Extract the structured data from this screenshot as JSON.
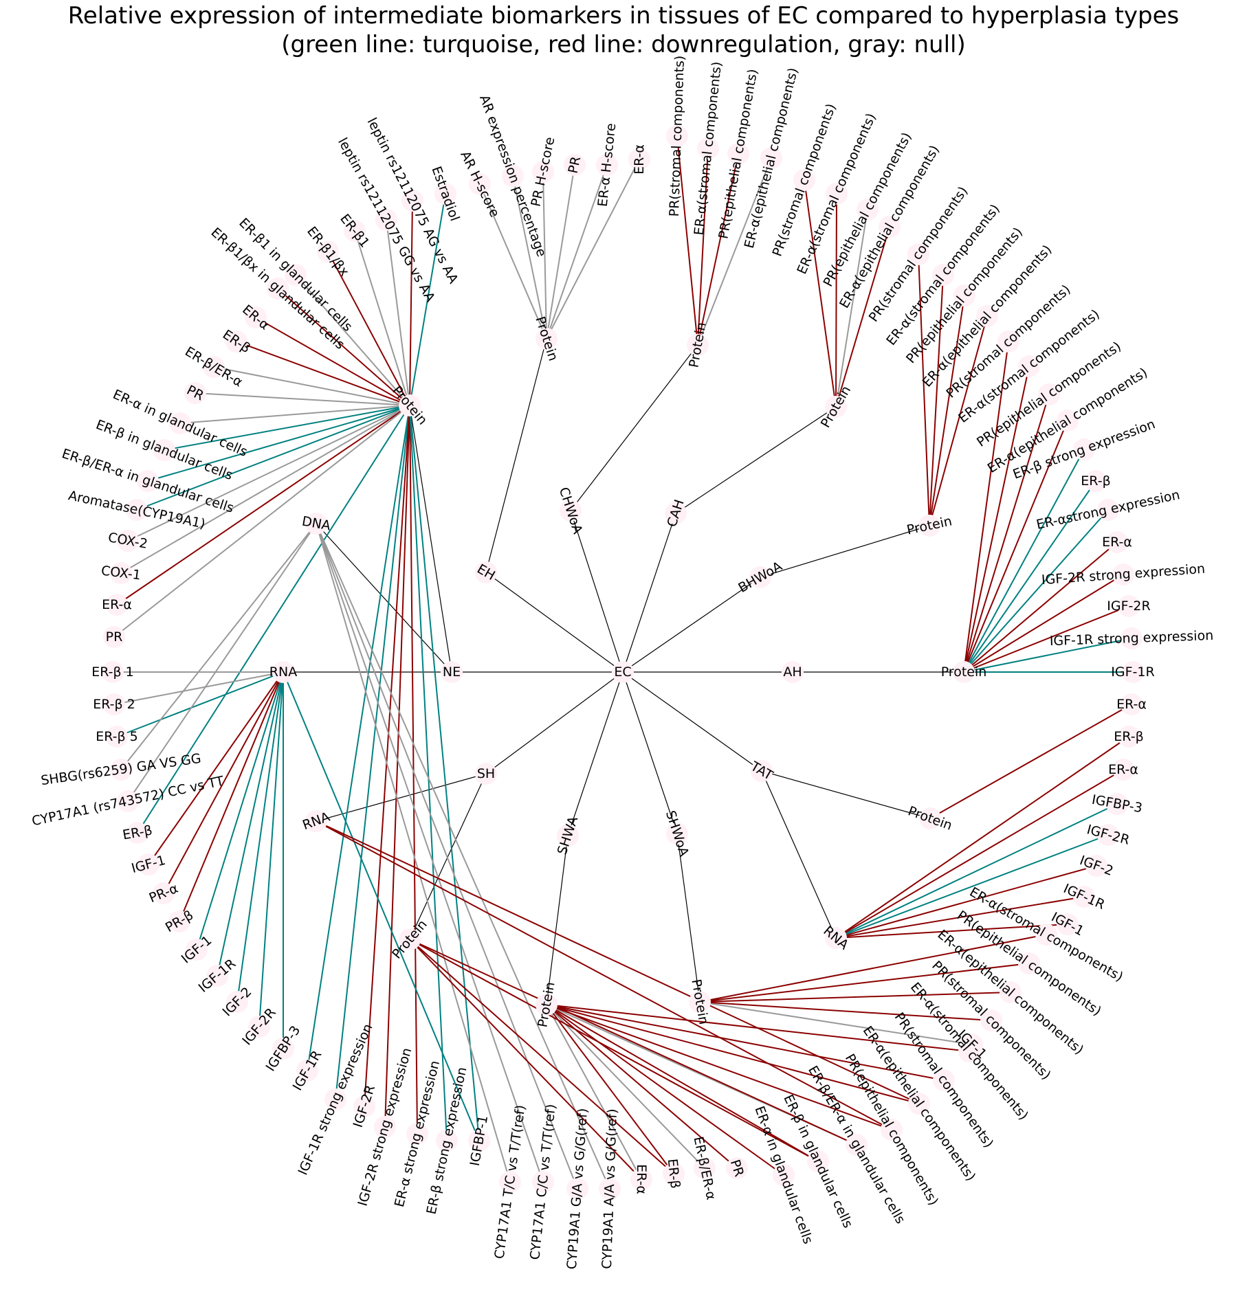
{
  "title": {
    "line1": "Relative expression of intermediate biomarkers in tissues of EC compared to hyperplasia types",
    "line2": "(green line: turquoise, red line: downregulation, gray: null)"
  },
  "colors": {
    "green": "#008080",
    "red": "#8b0000",
    "gray": "#999999",
    "black": "#000000",
    "node_fill": "#fff0f5"
  },
  "nodes": {
    "EC": "EC",
    "NE": "NE",
    "EH": "EH",
    "CHWoA": "CHWoA",
    "CAH": "CAH",
    "BHWoA": "BHWoA",
    "AH": "AH",
    "TAT": "TAT",
    "SHWoA": "SHWoA",
    "SHWA": "SHWA",
    "SH": "SH",
    "NE_Protein": "Protein",
    "NE_DNA": "DNA",
    "NE_RNA": "RNA",
    "EH_Protein": "Protein",
    "CHWoA_Protein": "Protein",
    "CAH_Protein": "Protein",
    "BHWoA_Protein": "Protein",
    "AH_Protein": "Protein",
    "TAT_Protein": "Protein",
    "TAT_RNA": "RNA",
    "SHWoA_Protein": "Protein",
    "SHWA_Protein": "Protein",
    "SH_RNA": "RNA",
    "SH_Protein": "Protein"
  },
  "leaves": {
    "nep_estradiol": "Estradiol",
    "nep_leptin_ag": "leptin rs12112075 AG vs AA",
    "nep_leptin_gg": "leptin rs12112075 GG vs AA",
    "nep_erb1": "ER-β1",
    "nep_erb1bx": "ER-β1/βx",
    "nep_erb1_gland": "ER-β1 in glandular cells",
    "nep_erb1bx_gland": "ER-β1/βx in glandular cells",
    "nep_era": "ER-α",
    "nep_erb": "ER-β",
    "nep_erbera": "ER-β/ER-α",
    "nep_pr": "PR",
    "nep_era_gland": "ER-α in glandular cells",
    "nep_erb_gland": "ER-β in glandular cells",
    "nep_erbera_gland": "ER-β/ER-α in glandular cells",
    "nep_aromatase": "Aromatase(CYP19A1)",
    "nep_cox2": "COX-2",
    "nep_cox1": "COX-1",
    "nep_era2": "ER-α",
    "nep_pr2": "PR",
    "ner_erb1": "ER-β 1",
    "ner_erb2": "ER-β 2",
    "ner_erb5": "ER-β 5",
    "ned_shbg": "SHBG(rs6259) GA VS GG",
    "ned_cyp17": "CYP17A1 (rs743572) CC vs TT",
    "ner_erb": "ER-β",
    "ner_igf1a": "IGF-1",
    "ner_pra": "PR-α",
    "ner_prb": "PR-β",
    "ner_igf1": "IGF-1",
    "ner_igf1r": "IGF-1R",
    "ner_igf2": "IGF-2",
    "ner_igf2r": "IGF-2R",
    "ner_igfbp3": "IGFBP-3",
    "nep_igf1r": "IGF-1R",
    "nep_igf1r_strong": "IGF-1R strong expression",
    "nep_igf2r": "IGF-2R",
    "nep_igf2r_strong": "IGF-2R strong expression",
    "nep_era_strong": "ER-α strong expression",
    "nep_erb_strong": "ER-β strong expression",
    "nep_igfbp1": "IGFBP-1",
    "ned_cyp17_tc": "CYP17A1 T/C vs T/T(ref)",
    "ned_cyp17_cc": "CYP17A1 C/C vs T/T(ref)",
    "ned_cyp19_ga": "CYP19A1 G/A vs G/G(ref)",
    "ned_cyp19_aa": "CYP19A1 A/A vs G/G(ref)",
    "shwa_era": "ER-α",
    "shwa_erb": "ER-β",
    "shwa_erbera": "ER-β/ER-α",
    "shwa_pr": "PR",
    "shwa_era_gland": "ER-α in glandular cells",
    "shwa_erb_gland": "ER-β in glandular cells",
    "shwa_erbera_gland": "ER-β/ER-α in glandular cells",
    "shwa_pr_epi": "PR(epithelial components)",
    "shwa_era_epi": "ER-α(epithelial components)",
    "shwa_era_str": "ER-α(stromal components)",
    "shwa_pr_str": "PR(stromal components)",
    "shwoa_igf1": "IGF-1",
    "shwoa_era_epi": "ER-α(epithelial components)",
    "shwoa_pr_epi": "PR(epithelial components)",
    "shwoa_era_str": "ER-α(stromal components)",
    "shwoa_pr_str": "PR(stromal components)",
    "tatr_igf1": "IGF-1",
    "tatr_igf1r": "IGF-1R",
    "tatr_igf2": "IGF-2",
    "tatr_igf2r": "IGF-2R",
    "tatr_igfbp3": "IGFBP-3",
    "tatr_era": "ER-α",
    "tatr_erb": "ER-β",
    "tatp_era": "ER-α",
    "ahp_igf1r": "IGF-1R",
    "ahp_igf1r_strong": "IGF-1R strong expression",
    "ahp_igf2r": "IGF-2R",
    "ahp_igf2r_strong": "IGF-2R strong expression",
    "ahp_era": "ER-α",
    "ahp_era_strong": "ER-αstrong expression",
    "ahp_erb": "ER-β",
    "ahp_erb_strong": "ER-β strong expression",
    "ahp_era_epi": "ER-α(epithelial components)",
    "ahp_pr_epi": "PR(epithelial components)",
    "ahp_era_str": "ER-α(stromal components)",
    "ahp_pr_str": "PR(stromal components)",
    "bhp_era_epi": "ER-α(epithelial components)",
    "bhp_pr_epi": "PR(epithelial components)",
    "bhp_era_str": "ER-α(stromal components)",
    "bhp_pr_str": "PR(stromal components)",
    "cahp_era_epi": "ER-α(epithelial components)",
    "cahp_pr_epi": "PR(epithelial components)",
    "cahp_era_str": "ER-α(stromal components)",
    "cahp_pr_str": "PR(stromal components)",
    "chp_era_epi": "ER-α(epithelial components)",
    "chp_pr_epi": "PR(epithelial components)",
    "chp_era_str": "ER-α(stromal components)",
    "chp_pr_str": "PR(stromal components)",
    "ehp_era": "ER-α",
    "ehp_era_h": "ER-α H-score",
    "ehp_pr": "PR",
    "ehp_pr_h": "PR H-score",
    "ehp_ar_pct": "AR expression percentage",
    "ehp_ar_h": "AR H-score"
  }
}
